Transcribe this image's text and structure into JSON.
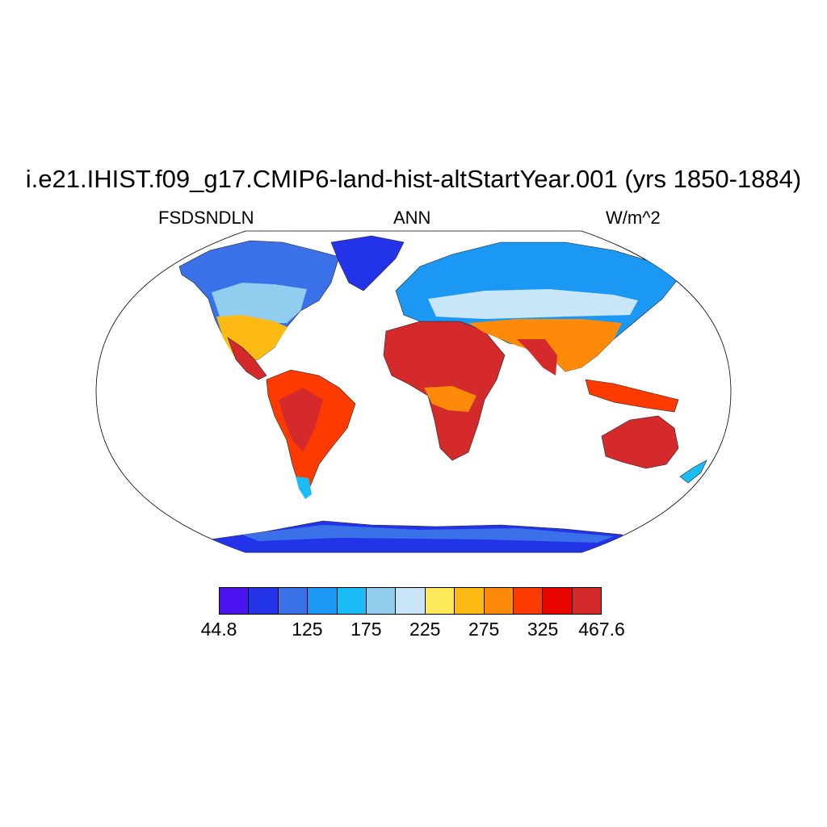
{
  "title": "i.e21.IHIST.f09_g17.CMIP6-land-hist-altStartYear.001 (yrs 1850-1884)",
  "subtitle_left": "FSDSNDLN",
  "subtitle_center": "ANN",
  "subtitle_right": "W/m^2",
  "colorbar": {
    "colors": [
      "#4a14f0",
      "#2233e8",
      "#3a70e8",
      "#1a98f4",
      "#1cbcf6",
      "#90cdef",
      "#c8e6f8",
      "#fde85a",
      "#fdb914",
      "#fd8a08",
      "#fd3a00",
      "#e80400",
      "#d42a2c"
    ],
    "labels": [
      "44.8",
      "125",
      "175",
      "225",
      "275",
      "325",
      "467.6"
    ]
  },
  "map_colors": {
    "boundary": "#000000",
    "land_outline": "#222222"
  }
}
